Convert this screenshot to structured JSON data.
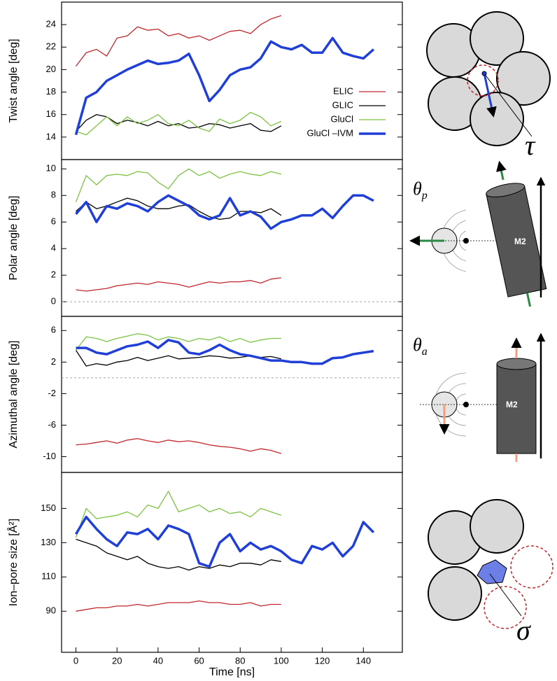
{
  "chart_data": [
    {
      "type": "line",
      "ylabel": "Twist angle [deg]",
      "legend": "lower right",
      "xlim": [
        -7,
        159
      ],
      "ylim": [
        12,
        26
      ],
      "yticks": [
        14,
        16,
        18,
        20,
        22,
        24
      ],
      "x": [
        0,
        5,
        10,
        15,
        20,
        25,
        30,
        35,
        40,
        45,
        50,
        55,
        60,
        65,
        70,
        75,
        80,
        85,
        90,
        95,
        100,
        105,
        110,
        115,
        120,
        125,
        130,
        135,
        140,
        145
      ],
      "series": [
        {
          "name": "ELIC",
          "color": "#c0282d",
          "line_width": 1.3,
          "values": [
            20.3,
            21.5,
            21.8,
            21.2,
            22.8,
            23.0,
            23.8,
            23.5,
            23.6,
            23.0,
            23.2,
            22.8,
            23.0,
            22.6,
            23.0,
            23.4,
            23.5,
            23.2,
            24.0,
            24.5,
            24.8,
            null,
            null,
            null,
            null,
            null,
            null,
            null,
            null,
            null
          ]
        },
        {
          "name": "GLIC",
          "color": "#000000",
          "line_width": 1.3,
          "values": [
            14.5,
            15.5,
            16.0,
            15.8,
            15.2,
            15.5,
            15.3,
            15.0,
            15.4,
            15.0,
            15.2,
            14.8,
            14.9,
            15.2,
            15.1,
            14.8,
            15.0,
            15.2,
            14.6,
            14.5,
            15.0,
            null,
            null,
            null,
            null,
            null,
            null,
            null,
            null,
            null
          ]
        },
        {
          "name": "GluCl",
          "color": "#7dc242",
          "line_width": 1.3,
          "values": [
            14.5,
            14.2,
            15.0,
            15.8,
            15.0,
            15.8,
            15.2,
            15.5,
            16.0,
            15.2,
            15.0,
            15.5,
            14.8,
            14.5,
            15.6,
            15.2,
            15.5,
            16.2,
            15.8,
            15.0,
            15.4,
            null,
            null,
            null,
            null,
            null,
            null,
            null,
            null,
            null
          ]
        },
        {
          "name": "GluCl –IVM",
          "color": "#1f3fd6",
          "line_width": 3.5,
          "values": [
            14.2,
            17.5,
            18.0,
            19.0,
            19.5,
            20.0,
            20.4,
            20.8,
            20.5,
            20.6,
            20.8,
            21.4,
            19.5,
            17.2,
            18.2,
            19.5,
            20.0,
            20.2,
            21.0,
            22.5,
            22.0,
            21.8,
            22.2,
            21.5,
            21.5,
            22.8,
            21.5,
            21.2,
            21.0,
            21.8
          ]
        }
      ]
    },
    {
      "type": "line",
      "ylabel": "Polar angle [deg]",
      "reference_line": 0,
      "xlim": [
        -7,
        159
      ],
      "ylim": [
        -1.1,
        10.7
      ],
      "yticks": [
        0,
        2,
        4,
        6,
        8,
        10
      ],
      "x": [
        0,
        5,
        10,
        15,
        20,
        25,
        30,
        35,
        40,
        45,
        50,
        55,
        60,
        65,
        70,
        75,
        80,
        85,
        90,
        95,
        100,
        105,
        110,
        115,
        120,
        125,
        130,
        135,
        140,
        145
      ],
      "series": [
        {
          "name": "ELIC",
          "color": "#c0282d",
          "line_width": 1.3,
          "values": [
            0.9,
            0.8,
            0.9,
            1.0,
            1.2,
            1.3,
            1.4,
            1.3,
            1.5,
            1.4,
            1.3,
            1.1,
            1.3,
            1.5,
            1.4,
            1.5,
            1.5,
            1.6,
            1.4,
            1.7,
            1.8,
            null,
            null,
            null,
            null,
            null,
            null,
            null,
            null,
            null
          ]
        },
        {
          "name": "GLIC",
          "color": "#000000",
          "line_width": 1.3,
          "values": [
            6.8,
            7.5,
            7.0,
            7.2,
            7.5,
            7.8,
            7.6,
            7.2,
            7.0,
            7.0,
            7.2,
            7.3,
            6.8,
            6.4,
            6.2,
            6.3,
            6.8,
            6.8,
            6.7,
            7.0,
            6.5,
            null,
            null,
            null,
            null,
            null,
            null,
            null,
            null,
            null
          ]
        },
        {
          "name": "GluCl",
          "color": "#7dc242",
          "line_width": 1.3,
          "values": [
            7.5,
            9.5,
            8.8,
            9.5,
            9.6,
            9.5,
            9.8,
            9.7,
            9.0,
            8.5,
            9.5,
            10.0,
            9.5,
            9.8,
            9.3,
            9.6,
            9.8,
            9.6,
            9.5,
            9.8,
            9.6,
            null,
            null,
            null,
            null,
            null,
            null,
            null,
            null,
            null
          ]
        },
        {
          "name": "GluCl –IVM",
          "color": "#1f3fd6",
          "line_width": 3.5,
          "values": [
            6.6,
            7.5,
            6.0,
            7.2,
            7.0,
            7.4,
            7.2,
            6.8,
            7.5,
            8.0,
            7.6,
            7.2,
            6.5,
            6.2,
            6.5,
            7.8,
            6.5,
            6.8,
            6.4,
            5.5,
            6.0,
            6.2,
            6.5,
            6.5,
            7.0,
            6.3,
            7.2,
            8.0,
            8.0,
            7.6
          ]
        }
      ]
    },
    {
      "type": "line",
      "ylabel": "Azimuthal angle [deg]",
      "reference_line": 0,
      "xlim": [
        -7,
        159
      ],
      "ylim": [
        -12,
        7.8
      ],
      "yticks": [
        6,
        2,
        -2,
        -6,
        -10
      ],
      "x": [
        0,
        5,
        10,
        15,
        20,
        25,
        30,
        35,
        40,
        45,
        50,
        55,
        60,
        65,
        70,
        75,
        80,
        85,
        90,
        95,
        100,
        105,
        110,
        115,
        120,
        125,
        130,
        135,
        140,
        145
      ],
      "series": [
        {
          "name": "ELIC",
          "color": "#c0282d",
          "line_width": 1.3,
          "values": [
            -8.5,
            -8.4,
            -8.2,
            -8.0,
            -8.3,
            -7.9,
            -7.7,
            -8.0,
            -8.2,
            -7.9,
            -8.1,
            -8.0,
            -8.2,
            -8.5,
            -8.7,
            -8.8,
            -9.0,
            -9.3,
            -9.0,
            -9.2,
            -9.6,
            null,
            null,
            null,
            null,
            null,
            null,
            null,
            null,
            null
          ]
        },
        {
          "name": "GLIC",
          "color": "#000000",
          "line_width": 1.3,
          "values": [
            3.5,
            1.5,
            1.8,
            1.6,
            2.0,
            2.2,
            2.6,
            2.2,
            2.5,
            2.8,
            2.4,
            2.5,
            2.6,
            2.8,
            2.7,
            2.5,
            2.6,
            2.8,
            2.6,
            2.7,
            2.4,
            null,
            null,
            null,
            null,
            null,
            null,
            null,
            null,
            null
          ]
        },
        {
          "name": "GluCl",
          "color": "#7dc242",
          "line_width": 1.3,
          "values": [
            3.5,
            5.2,
            5.0,
            4.6,
            5.0,
            5.3,
            5.6,
            5.4,
            4.8,
            5.2,
            5.0,
            4.6,
            5.0,
            4.8,
            5.2,
            4.6,
            5.0,
            4.5,
            4.8,
            5.0,
            5.0,
            null,
            null,
            null,
            null,
            null,
            null,
            null,
            null,
            null
          ]
        },
        {
          "name": "GluCl –IVM",
          "color": "#1f3fd6",
          "line_width": 3.5,
          "values": [
            3.8,
            3.8,
            3.2,
            3.0,
            3.5,
            4.0,
            4.2,
            4.6,
            3.8,
            4.8,
            4.5,
            3.2,
            3.0,
            3.5,
            4.2,
            3.5,
            3.0,
            2.8,
            2.5,
            2.2,
            2.2,
            2.0,
            2.0,
            1.8,
            1.8,
            2.5,
            2.6,
            3.0,
            3.2,
            3.4
          ]
        }
      ]
    },
    {
      "type": "line",
      "ylabel": "Ion–pore size [Å²]",
      "xlabel": "Time [ns]",
      "xlim": [
        -7,
        159
      ],
      "ylim": [
        66,
        171
      ],
      "yticks": [
        90,
        110,
        130,
        150
      ],
      "xticks": [
        0,
        20,
        40,
        60,
        80,
        100,
        120,
        140
      ],
      "x": [
        0,
        5,
        10,
        15,
        20,
        25,
        30,
        35,
        40,
        45,
        50,
        55,
        60,
        65,
        70,
        75,
        80,
        85,
        90,
        95,
        100,
        105,
        110,
        115,
        120,
        125,
        130,
        135,
        140,
        145
      ],
      "series": [
        {
          "name": "ELIC",
          "color": "#c0282d",
          "line_width": 1.3,
          "values": [
            90,
            91,
            92,
            92,
            93,
            93,
            94,
            93,
            94,
            95,
            95,
            95,
            96,
            95,
            95,
            94,
            94,
            95,
            93,
            94,
            94,
            null,
            null,
            null,
            null,
            null,
            null,
            null,
            null,
            null
          ]
        },
        {
          "name": "GLIC",
          "color": "#000000",
          "line_width": 1.3,
          "values": [
            132,
            130,
            128,
            124,
            122,
            120,
            122,
            118,
            116,
            115,
            116,
            114,
            116,
            115,
            117,
            116,
            118,
            118,
            117,
            120,
            119,
            null,
            null,
            null,
            null,
            null,
            null,
            null,
            null,
            null
          ]
        },
        {
          "name": "GluCl",
          "color": "#7dc242",
          "line_width": 1.3,
          "values": [
            133,
            150,
            144,
            145,
            146,
            148,
            145,
            152,
            150,
            160,
            148,
            150,
            152,
            148,
            150,
            147,
            148,
            145,
            150,
            148,
            146,
            null,
            null,
            null,
            null,
            null,
            null,
            null,
            null,
            null
          ]
        },
        {
          "name": "GluCl –IVM",
          "color": "#1f3fd6",
          "line_width": 3.5,
          "values": [
            135,
            145,
            138,
            132,
            128,
            136,
            135,
            138,
            132,
            140,
            138,
            135,
            118,
            116,
            130,
            135,
            125,
            130,
            126,
            128,
            125,
            120,
            118,
            128,
            126,
            130,
            122,
            128,
            142,
            136
          ]
        }
      ]
    }
  ],
  "diagram_labels": {
    "tau": "τ",
    "theta_p": {
      "symbol": "θ",
      "subscript": "p"
    },
    "m2_polar": "M2",
    "theta_a": {
      "symbol": "θ",
      "subscript": "a"
    },
    "m2_azimuthal": "M2",
    "sigma": "σ"
  }
}
